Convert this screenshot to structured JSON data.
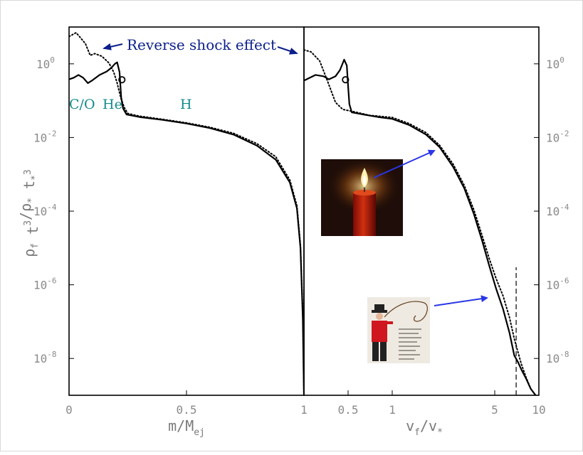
{
  "colors": {
    "frame": "#000000",
    "tick_text": "#8a8a8a",
    "axis_text": "#7a7a7a",
    "annotation_blue": "#0b1f8a",
    "element_teal": "#138a8a",
    "arrow_blue": "#2a36e6"
  },
  "chart_data": [
    {
      "type": "line",
      "title": "",
      "xlabel": "m/Mej",
      "ylabel": "ρf t³/ρ* t*³",
      "xscale": "linear",
      "yscale": "log",
      "xlim": [
        0,
        1
      ],
      "ylim": [
        1e-09,
        10
      ],
      "xticks": [
        0,
        0.5,
        1
      ],
      "xtick_labels": [
        "0",
        "0.5",
        "1"
      ],
      "yticks": [
        1,
        0.01,
        0.0001,
        1e-06,
        1e-08
      ],
      "ytick_labels": [
        {
          "base": "10",
          "exp": "0"
        },
        {
          "base": "10",
          "exp": "-2"
        },
        {
          "base": "10",
          "exp": "-4"
        },
        {
          "base": "10",
          "exp": "-6"
        },
        {
          "base": "10",
          "exp": "-8"
        }
      ],
      "series": [
        {
          "style": "solid",
          "points": [
            [
              0.0,
              0.38
            ],
            [
              0.02,
              0.42
            ],
            [
              0.04,
              0.5
            ],
            [
              0.06,
              0.42
            ],
            [
              0.08,
              0.3
            ],
            [
              0.1,
              0.36
            ],
            [
              0.13,
              0.5
            ],
            [
              0.16,
              0.62
            ],
            [
              0.18,
              0.78
            ],
            [
              0.195,
              1.0
            ],
            [
              0.205,
              1.1
            ],
            [
              0.215,
              0.6
            ],
            [
              0.222,
              0.12
            ],
            [
              0.23,
              0.062
            ],
            [
              0.245,
              0.042
            ],
            [
              0.3,
              0.036
            ],
            [
              0.4,
              0.03
            ],
            [
              0.5,
              0.024
            ],
            [
              0.6,
              0.018
            ],
            [
              0.7,
              0.012
            ],
            [
              0.8,
              0.006
            ],
            [
              0.88,
              0.0025
            ],
            [
              0.94,
              0.0006
            ],
            [
              0.97,
              0.00012
            ],
            [
              0.985,
              1e-05
            ],
            [
              0.995,
              1.2e-07
            ],
            [
              1.0,
              1e-09
            ]
          ]
        },
        {
          "style": "dotted",
          "points": [
            [
              0.0,
              5.5
            ],
            [
              0.03,
              7.0
            ],
            [
              0.05,
              5.0
            ],
            [
              0.07,
              3.5
            ],
            [
              0.09,
              1.7
            ],
            [
              0.11,
              1.9
            ],
            [
              0.14,
              1.6
            ],
            [
              0.17,
              1.05
            ],
            [
              0.19,
              0.6
            ],
            [
              0.205,
              0.3
            ],
            [
              0.22,
              0.12
            ],
            [
              0.235,
              0.065
            ],
            [
              0.25,
              0.045
            ],
            [
              0.3,
              0.038
            ],
            [
              0.4,
              0.031
            ],
            [
              0.5,
              0.025
            ],
            [
              0.6,
              0.019
            ],
            [
              0.7,
              0.013
            ],
            [
              0.8,
              0.0068
            ],
            [
              0.88,
              0.003
            ],
            [
              0.94,
              0.0007
            ],
            [
              0.97,
              0.00014
            ],
            [
              0.985,
              1.2e-05
            ],
            [
              0.995,
              1.5e-07
            ],
            [
              1.0,
              1e-09
            ]
          ]
        }
      ],
      "markers": [
        {
          "shape": "circle",
          "x": 0.225,
          "y": 0.37
        }
      ],
      "annotations": [
        {
          "text": "C/O",
          "x": 0.0,
          "y": 0.13
        },
        {
          "text": "He",
          "x": 0.15,
          "y": 0.13
        },
        {
          "text": "H",
          "x": 0.5,
          "y": 0.13
        }
      ]
    },
    {
      "type": "line",
      "title": "",
      "xlabel": "vf/v*",
      "ylabel": "ρf t³/ρ* t*³",
      "xscale": "log",
      "xlim": [
        0.25,
        10
      ],
      "yscale": "log",
      "ylim": [
        1e-09,
        10
      ],
      "xticks": [
        0.5,
        1,
        5,
        10
      ],
      "xtick_labels": [
        "0.5",
        "1",
        "5",
        "10"
      ],
      "yticks": [
        1,
        0.01,
        0.0001,
        1e-06,
        1e-08
      ],
      "ytick_labels": [
        {
          "base": "10",
          "exp": "0"
        },
        {
          "base": "10",
          "exp": "-2"
        },
        {
          "base": "10",
          "exp": "-4"
        },
        {
          "base": "10",
          "exp": "-6"
        },
        {
          "base": "10",
          "exp": "-8"
        }
      ],
      "series": [
        {
          "style": "solid",
          "points": [
            [
              0.25,
              0.35
            ],
            [
              0.3,
              0.5
            ],
            [
              0.34,
              0.46
            ],
            [
              0.37,
              0.38
            ],
            [
              0.41,
              0.46
            ],
            [
              0.44,
              0.68
            ],
            [
              0.47,
              1.3
            ],
            [
              0.49,
              0.9
            ],
            [
              0.5,
              0.25
            ],
            [
              0.51,
              0.08
            ],
            [
              0.53,
              0.048
            ],
            [
              0.6,
              0.044
            ],
            [
              0.8,
              0.036
            ],
            [
              1.0,
              0.032
            ],
            [
              1.3,
              0.022
            ],
            [
              1.7,
              0.012
            ],
            [
              2.1,
              0.0055
            ],
            [
              2.6,
              0.0016
            ],
            [
              3.1,
              0.00042
            ],
            [
              3.6,
              8.5e-05
            ],
            [
              4.1,
              1.6e-05
            ],
            [
              4.6,
              3.2e-06
            ],
            [
              5.1,
              8e-07
            ],
            [
              5.7,
              2.2e-07
            ],
            [
              6.3,
              5e-08
            ],
            [
              6.8,
              1.2e-08
            ],
            [
              7.2,
              8e-09
            ],
            [
              7.6,
              5e-09
            ],
            [
              8.2,
              2.8e-09
            ],
            [
              8.8,
              1.5e-09
            ],
            [
              9.5,
              1e-09
            ]
          ]
        },
        {
          "style": "dotted",
          "points": [
            [
              0.25,
              2.4
            ],
            [
              0.28,
              2.1
            ],
            [
              0.32,
              1.2
            ],
            [
              0.36,
              0.36
            ],
            [
              0.41,
              0.09
            ],
            [
              0.46,
              0.058
            ],
            [
              0.55,
              0.05
            ],
            [
              0.7,
              0.04
            ],
            [
              1.0,
              0.035
            ],
            [
              1.3,
              0.024
            ],
            [
              1.7,
              0.0135
            ],
            [
              2.1,
              0.0062
            ],
            [
              2.6,
              0.0019
            ],
            [
              3.1,
              0.0005
            ],
            [
              3.6,
              0.00011
            ],
            [
              4.1,
              2.2e-05
            ],
            [
              4.6,
              5e-06
            ],
            [
              5.1,
              1.5e-06
            ],
            [
              5.7,
              5e-07
            ],
            [
              6.3,
              1.3e-07
            ],
            [
              6.8,
              3.4e-08
            ],
            [
              7.2,
              1.5e-08
            ],
            [
              7.6,
              7e-09
            ],
            [
              8.2,
              3e-09
            ],
            [
              8.8,
              1.5e-09
            ],
            [
              9.5,
              1e-09
            ]
          ]
        }
      ],
      "markers": [
        {
          "shape": "circle",
          "x": 0.48,
          "y": 0.37
        }
      ],
      "reference_lines": [
        {
          "style": "dashed",
          "orientation": "vertical",
          "x": 7.0,
          "y_from": 1e-09,
          "y_to": 3e-06
        }
      ]
    }
  ],
  "annotation": {
    "text": "Reverse shock effect"
  },
  "insets": [
    {
      "name": "candle-image",
      "subject": "lit red candle"
    },
    {
      "name": "whip-image",
      "subject": "man in red shirt and cowboy hat cracking a whip"
    }
  ]
}
